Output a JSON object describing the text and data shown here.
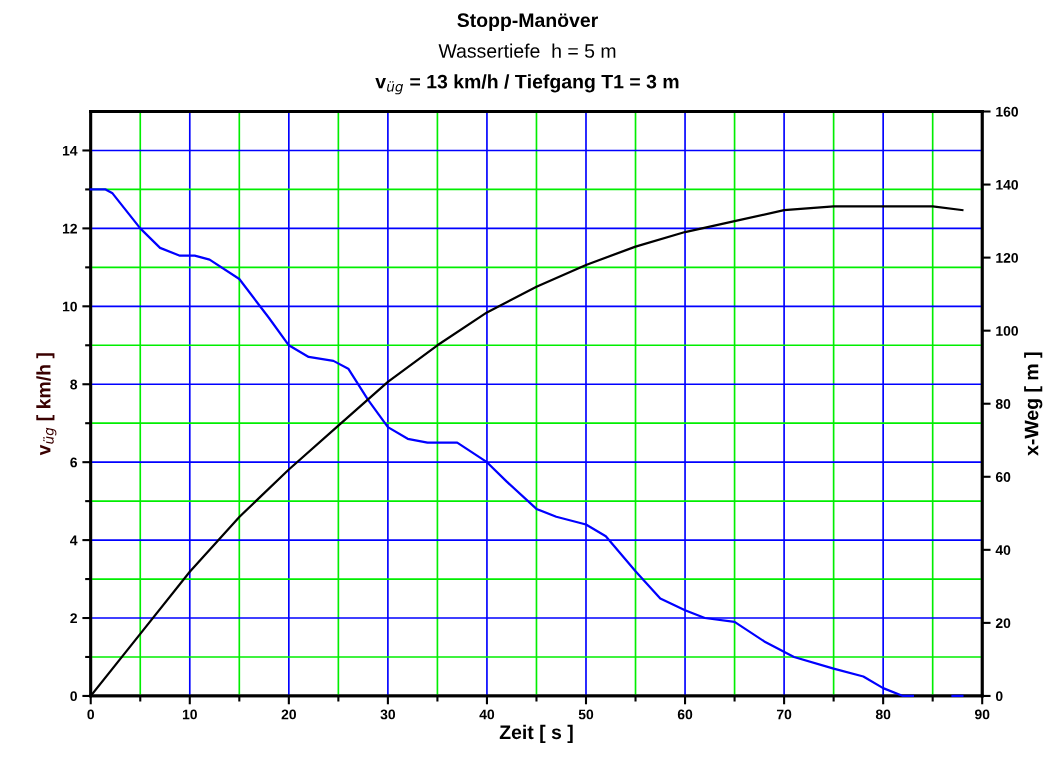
{
  "chart_data": {
    "type": "line",
    "title": "Stopp-Manöver",
    "subtitle": "Wassertiefe  h = 5 m\nv$_{üg}$ = 13 km/h / Tiefgang T1 = 3 m",
    "xlabel": "Zeit [ s ]",
    "ylabel": "v$_{üg}$ [ km/h ]",
    "y2label": "x-Weg [ m ]",
    "xlim": [
      0,
      90
    ],
    "xticks": [
      0,
      {
        "value": 5,
        "label": null
      },
      10,
      {
        "value": 15,
        "label": null
      },
      20,
      {
        "value": 25,
        "label": null
      },
      30,
      {
        "value": 35,
        "label": null
      },
      40,
      {
        "value": 45,
        "label": null
      },
      50,
      {
        "value": 55,
        "label": null
      },
      60,
      {
        "value": 65,
        "label": null
      },
      70,
      {
        "value": 75,
        "label": null
      },
      80,
      {
        "value": 85,
        "label": null
      },
      90
    ],
    "ylim": [
      0,
      15
    ],
    "yticks": [
      0,
      {
        "value": 1,
        "label": null
      },
      2,
      {
        "value": 3,
        "label": null
      },
      4,
      {
        "value": 5,
        "label": null
      },
      6,
      {
        "value": 7,
        "label": null
      },
      8,
      {
        "value": 9,
        "label": null
      },
      10,
      {
        "value": 11,
        "label": null
      },
      12,
      {
        "value": 13,
        "label": null
      },
      14
    ],
    "y2lim": [
      0,
      160
    ],
    "y2ticks": [
      0,
      20,
      40,
      60,
      80,
      100,
      120,
      140,
      160
    ],
    "grid": true,
    "legend": false,
    "marker": "none",
    "line_style": "solid",
    "series": [
      {
        "color": "#0000ff",
        "x": [
          0,
          1.5,
          2.2,
          5,
          7,
          9,
          10.5,
          12,
          15,
          18,
          20,
          22,
          24.5,
          26,
          28,
          30,
          32,
          34,
          37,
          40,
          42,
          45,
          47,
          50,
          52,
          55,
          57.5,
          60,
          62,
          65,
          68,
          71,
          75,
          78,
          80,
          82,
          83,
          85,
          87,
          88
        ],
        "values": [
          13.0,
          13.0,
          12.9,
          12.0,
          11.5,
          11.3,
          11.3,
          11.2,
          10.7,
          9.7,
          9.0,
          8.7,
          8.6,
          8.4,
          7.6,
          6.9,
          6.6,
          6.5,
          6.5,
          6.0,
          5.5,
          4.8,
          4.6,
          4.4,
          4.1,
          3.2,
          2.5,
          2.2,
          2.0,
          1.9,
          1.4,
          1.0,
          0.7,
          0.5,
          0.2,
          0.0,
          0.0,
          null,
          0.0,
          0.0
        ]
      },
      {
        "color": "#000000",
        "axis": "y2",
        "x": [
          0,
          5,
          10,
          15,
          20,
          25,
          30,
          35,
          40,
          45,
          50,
          55,
          60,
          65,
          70,
          75,
          80,
          85,
          88
        ],
        "values": [
          0,
          17,
          34,
          49,
          62,
          74,
          86,
          96,
          105,
          112,
          118,
          123,
          127,
          130,
          133,
          134,
          134,
          134,
          133
        ]
      }
    ]
  }
}
